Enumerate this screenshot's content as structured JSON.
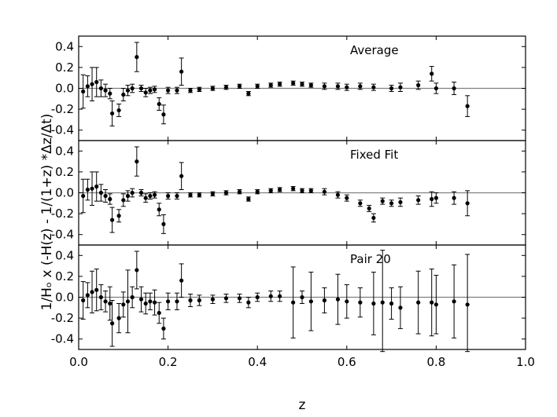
{
  "chart_data": {
    "type": "scatter",
    "xlabel": "z",
    "ylabel": "1/Hₒ x (-H(z) - 1/(1+z) *Δz/Δt)",
    "xlim": [
      0.0,
      1.0
    ],
    "ylim": [
      -0.5,
      0.5
    ],
    "xticks": [
      "0.0",
      "0.2",
      "0.4",
      "0.6",
      "0.8",
      "1.0"
    ],
    "yticks": [
      "0.4",
      "0.2",
      "0.0",
      "-0.2",
      "-0.4"
    ],
    "reference_line": 0.0,
    "panels": [
      {
        "label": "Average",
        "points": [
          {
            "x": 0.01,
            "y": -0.03,
            "err": 0.16
          },
          {
            "x": 0.02,
            "y": 0.02,
            "err": 0.1
          },
          {
            "x": 0.03,
            "y": 0.04,
            "err": 0.16
          },
          {
            "x": 0.04,
            "y": 0.06,
            "err": 0.14
          },
          {
            "x": 0.05,
            "y": 0.0,
            "err": 0.08
          },
          {
            "x": 0.06,
            "y": -0.02,
            "err": 0.06
          },
          {
            "x": 0.07,
            "y": -0.05,
            "err": 0.05
          },
          {
            "x": 0.075,
            "y": -0.24,
            "err": 0.12
          },
          {
            "x": 0.09,
            "y": -0.21,
            "err": 0.06
          },
          {
            "x": 0.1,
            "y": -0.06,
            "err": 0.06
          },
          {
            "x": 0.11,
            "y": -0.02,
            "err": 0.05
          },
          {
            "x": 0.12,
            "y": 0.0,
            "err": 0.04
          },
          {
            "x": 0.13,
            "y": 0.3,
            "err": 0.14
          },
          {
            "x": 0.14,
            "y": 0.0,
            "err": 0.03
          },
          {
            "x": 0.15,
            "y": -0.04,
            "err": 0.04
          },
          {
            "x": 0.16,
            "y": -0.02,
            "err": 0.03
          },
          {
            "x": 0.17,
            "y": -0.01,
            "err": 0.03
          },
          {
            "x": 0.18,
            "y": -0.15,
            "err": 0.06
          },
          {
            "x": 0.19,
            "y": -0.25,
            "err": 0.09
          },
          {
            "x": 0.2,
            "y": -0.02,
            "err": 0.03
          },
          {
            "x": 0.22,
            "y": -0.02,
            "err": 0.03
          },
          {
            "x": 0.23,
            "y": 0.16,
            "err": 0.13
          },
          {
            "x": 0.25,
            "y": -0.02,
            "err": 0.02
          },
          {
            "x": 0.27,
            "y": -0.01,
            "err": 0.02
          },
          {
            "x": 0.3,
            "y": 0.0,
            "err": 0.02
          },
          {
            "x": 0.33,
            "y": 0.01,
            "err": 0.02
          },
          {
            "x": 0.36,
            "y": 0.02,
            "err": 0.02
          },
          {
            "x": 0.38,
            "y": -0.05,
            "err": 0.02
          },
          {
            "x": 0.4,
            "y": 0.02,
            "err": 0.02
          },
          {
            "x": 0.43,
            "y": 0.03,
            "err": 0.02
          },
          {
            "x": 0.45,
            "y": 0.04,
            "err": 0.02
          },
          {
            "x": 0.48,
            "y": 0.05,
            "err": 0.02
          },
          {
            "x": 0.5,
            "y": 0.04,
            "err": 0.02
          },
          {
            "x": 0.52,
            "y": 0.03,
            "err": 0.02
          },
          {
            "x": 0.55,
            "y": 0.02,
            "err": 0.03
          },
          {
            "x": 0.58,
            "y": 0.02,
            "err": 0.03
          },
          {
            "x": 0.6,
            "y": 0.01,
            "err": 0.03
          },
          {
            "x": 0.63,
            "y": 0.02,
            "err": 0.03
          },
          {
            "x": 0.66,
            "y": 0.01,
            "err": 0.03
          },
          {
            "x": 0.7,
            "y": 0.0,
            "err": 0.03
          },
          {
            "x": 0.72,
            "y": 0.01,
            "err": 0.04
          },
          {
            "x": 0.76,
            "y": 0.03,
            "err": 0.04
          },
          {
            "x": 0.79,
            "y": 0.14,
            "err": 0.07
          },
          {
            "x": 0.8,
            "y": 0.0,
            "err": 0.05
          },
          {
            "x": 0.84,
            "y": 0.0,
            "err": 0.06
          },
          {
            "x": 0.87,
            "y": -0.17,
            "err": 0.1
          }
        ]
      },
      {
        "label": "Fixed Fit",
        "points": [
          {
            "x": 0.01,
            "y": -0.03,
            "err": 0.16
          },
          {
            "x": 0.02,
            "y": 0.03,
            "err": 0.1
          },
          {
            "x": 0.03,
            "y": 0.04,
            "err": 0.16
          },
          {
            "x": 0.04,
            "y": 0.06,
            "err": 0.14
          },
          {
            "x": 0.05,
            "y": 0.0,
            "err": 0.08
          },
          {
            "x": 0.06,
            "y": -0.03,
            "err": 0.06
          },
          {
            "x": 0.07,
            "y": -0.06,
            "err": 0.05
          },
          {
            "x": 0.075,
            "y": -0.26,
            "err": 0.12
          },
          {
            "x": 0.09,
            "y": -0.22,
            "err": 0.06
          },
          {
            "x": 0.1,
            "y": -0.07,
            "err": 0.06
          },
          {
            "x": 0.11,
            "y": -0.03,
            "err": 0.05
          },
          {
            "x": 0.12,
            "y": 0.0,
            "err": 0.04
          },
          {
            "x": 0.13,
            "y": 0.3,
            "err": 0.14
          },
          {
            "x": 0.14,
            "y": 0.0,
            "err": 0.03
          },
          {
            "x": 0.15,
            "y": -0.05,
            "err": 0.04
          },
          {
            "x": 0.16,
            "y": -0.03,
            "err": 0.03
          },
          {
            "x": 0.17,
            "y": -0.02,
            "err": 0.03
          },
          {
            "x": 0.18,
            "y": -0.16,
            "err": 0.06
          },
          {
            "x": 0.19,
            "y": -0.3,
            "err": 0.09
          },
          {
            "x": 0.2,
            "y": -0.03,
            "err": 0.03
          },
          {
            "x": 0.22,
            "y": -0.03,
            "err": 0.03
          },
          {
            "x": 0.23,
            "y": 0.16,
            "err": 0.13
          },
          {
            "x": 0.25,
            "y": -0.02,
            "err": 0.02
          },
          {
            "x": 0.27,
            "y": -0.02,
            "err": 0.02
          },
          {
            "x": 0.3,
            "y": -0.01,
            "err": 0.02
          },
          {
            "x": 0.33,
            "y": 0.0,
            "err": 0.02
          },
          {
            "x": 0.36,
            "y": 0.01,
            "err": 0.02
          },
          {
            "x": 0.38,
            "y": -0.06,
            "err": 0.02
          },
          {
            "x": 0.4,
            "y": 0.01,
            "err": 0.02
          },
          {
            "x": 0.43,
            "y": 0.02,
            "err": 0.02
          },
          {
            "x": 0.45,
            "y": 0.03,
            "err": 0.02
          },
          {
            "x": 0.48,
            "y": 0.04,
            "err": 0.02
          },
          {
            "x": 0.5,
            "y": 0.02,
            "err": 0.02
          },
          {
            "x": 0.52,
            "y": 0.02,
            "err": 0.02
          },
          {
            "x": 0.55,
            "y": 0.01,
            "err": 0.03
          },
          {
            "x": 0.58,
            "y": -0.02,
            "err": 0.03
          },
          {
            "x": 0.6,
            "y": -0.05,
            "err": 0.03
          },
          {
            "x": 0.63,
            "y": -0.1,
            "err": 0.03
          },
          {
            "x": 0.65,
            "y": -0.15,
            "err": 0.03
          },
          {
            "x": 0.66,
            "y": -0.24,
            "err": 0.04
          },
          {
            "x": 0.68,
            "y": -0.08,
            "err": 0.03
          },
          {
            "x": 0.7,
            "y": -0.1,
            "err": 0.03
          },
          {
            "x": 0.72,
            "y": -0.09,
            "err": 0.04
          },
          {
            "x": 0.76,
            "y": -0.07,
            "err": 0.04
          },
          {
            "x": 0.79,
            "y": -0.06,
            "err": 0.07
          },
          {
            "x": 0.8,
            "y": -0.05,
            "err": 0.05
          },
          {
            "x": 0.84,
            "y": -0.05,
            "err": 0.06
          },
          {
            "x": 0.87,
            "y": -0.1,
            "err": 0.12
          }
        ]
      },
      {
        "label": "Pair 20",
        "points": [
          {
            "x": 0.01,
            "y": -0.03,
            "err": 0.18
          },
          {
            "x": 0.02,
            "y": 0.02,
            "err": 0.12
          },
          {
            "x": 0.03,
            "y": 0.05,
            "err": 0.2
          },
          {
            "x": 0.04,
            "y": 0.07,
            "err": 0.2
          },
          {
            "x": 0.05,
            "y": 0.0,
            "err": 0.12
          },
          {
            "x": 0.06,
            "y": -0.04,
            "err": 0.1
          },
          {
            "x": 0.07,
            "y": -0.06,
            "err": 0.16
          },
          {
            "x": 0.075,
            "y": -0.25,
            "err": 0.22
          },
          {
            "x": 0.09,
            "y": -0.2,
            "err": 0.14
          },
          {
            "x": 0.1,
            "y": -0.07,
            "err": 0.12
          },
          {
            "x": 0.11,
            "y": -0.04,
            "err": 0.3
          },
          {
            "x": 0.12,
            "y": 0.0,
            "err": 0.1
          },
          {
            "x": 0.13,
            "y": 0.26,
            "err": 0.18
          },
          {
            "x": 0.14,
            "y": -0.02,
            "err": 0.12
          },
          {
            "x": 0.15,
            "y": -0.06,
            "err": 0.1
          },
          {
            "x": 0.16,
            "y": -0.04,
            "err": 0.08
          },
          {
            "x": 0.17,
            "y": -0.05,
            "err": 0.12
          },
          {
            "x": 0.18,
            "y": -0.15,
            "err": 0.1
          },
          {
            "x": 0.19,
            "y": -0.3,
            "err": 0.1
          },
          {
            "x": 0.2,
            "y": -0.04,
            "err": 0.08
          },
          {
            "x": 0.22,
            "y": -0.04,
            "err": 0.08
          },
          {
            "x": 0.23,
            "y": 0.16,
            "err": 0.16
          },
          {
            "x": 0.25,
            "y": -0.03,
            "err": 0.06
          },
          {
            "x": 0.27,
            "y": -0.03,
            "err": 0.05
          },
          {
            "x": 0.3,
            "y": -0.02,
            "err": 0.04
          },
          {
            "x": 0.33,
            "y": -0.01,
            "err": 0.04
          },
          {
            "x": 0.36,
            "y": -0.01,
            "err": 0.04
          },
          {
            "x": 0.38,
            "y": -0.05,
            "err": 0.05
          },
          {
            "x": 0.4,
            "y": 0.0,
            "err": 0.04
          },
          {
            "x": 0.43,
            "y": 0.01,
            "err": 0.05
          },
          {
            "x": 0.45,
            "y": 0.01,
            "err": 0.05
          },
          {
            "x": 0.48,
            "y": -0.05,
            "err": 0.34
          },
          {
            "x": 0.5,
            "y": 0.0,
            "err": 0.06
          },
          {
            "x": 0.52,
            "y": -0.04,
            "err": 0.28
          },
          {
            "x": 0.55,
            "y": -0.03,
            "err": 0.12
          },
          {
            "x": 0.58,
            "y": -0.02,
            "err": 0.24
          },
          {
            "x": 0.6,
            "y": -0.04,
            "err": 0.16
          },
          {
            "x": 0.63,
            "y": -0.05,
            "err": 0.14
          },
          {
            "x": 0.66,
            "y": -0.06,
            "err": 0.3
          },
          {
            "x": 0.68,
            "y": -0.05,
            "err": 0.5
          },
          {
            "x": 0.7,
            "y": -0.06,
            "err": 0.15
          },
          {
            "x": 0.72,
            "y": -0.1,
            "err": 0.2
          },
          {
            "x": 0.76,
            "y": -0.05,
            "err": 0.3
          },
          {
            "x": 0.79,
            "y": -0.05,
            "err": 0.32
          },
          {
            "x": 0.8,
            "y": -0.07,
            "err": 0.28
          },
          {
            "x": 0.84,
            "y": -0.04,
            "err": 0.35
          },
          {
            "x": 0.87,
            "y": -0.07,
            "err": 0.48
          }
        ]
      }
    ]
  },
  "colors": {
    "marker": "#000000",
    "reference_line": "#808080",
    "axes": "#000000"
  }
}
